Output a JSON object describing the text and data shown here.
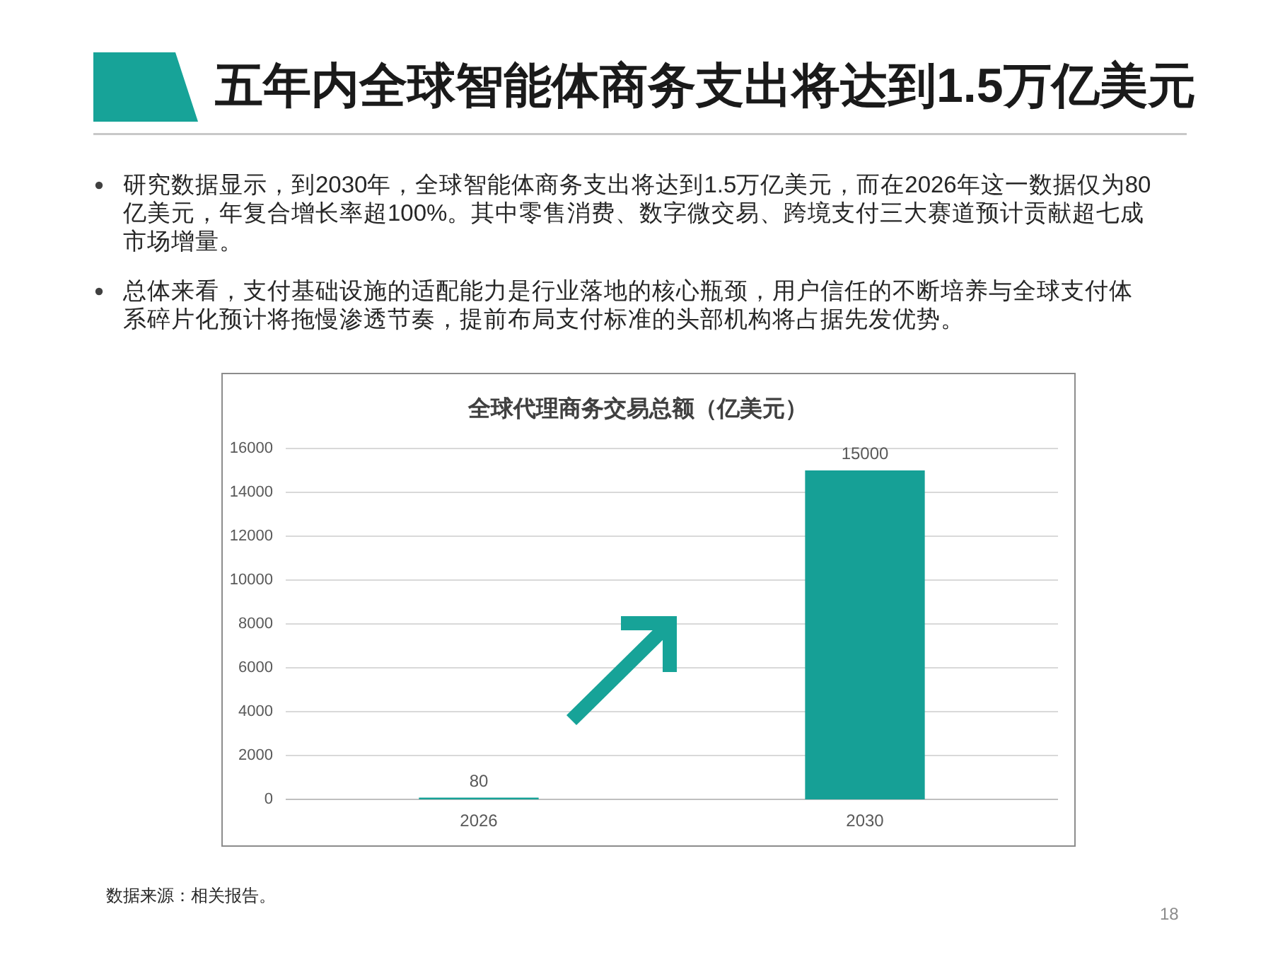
{
  "chart_data": {
    "type": "bar",
    "title": "五年内全球智能体商务支出将达到1.5万亿美元",
    "subtitle": "全球代理商务交易总额（亿美元）",
    "categories": [
      "2026",
      "2030"
    ],
    "values": [
      80,
      15000
    ],
    "color": "#16a096",
    "ylim": [
      0,
      16000
    ],
    "yticks": [
      0,
      2000,
      4000,
      6000,
      8000,
      10000,
      12000,
      14000,
      16000
    ],
    "grid": "y",
    "data_labels": true,
    "annotations": [
      "研究数据显示，到2030年，全球智能体商务支出将达到1.5万亿美元，而在2026年这一数据仅为80亿美元，年复合增长率超100%。其中零售消费、数字微交易、跨境支付三大赛道预计贡献超七成市场增量。",
      "总体来看，支付基础设施的适配能力是行业落地的核心瓶颈，用户信任的不断培养与全球支付体系碎片化预计将拖慢渗透节奏，提前布局支付标准的头部机构将占据先发优势。",
      "数据来源：相关报告。",
      "18"
    ]
  }
}
